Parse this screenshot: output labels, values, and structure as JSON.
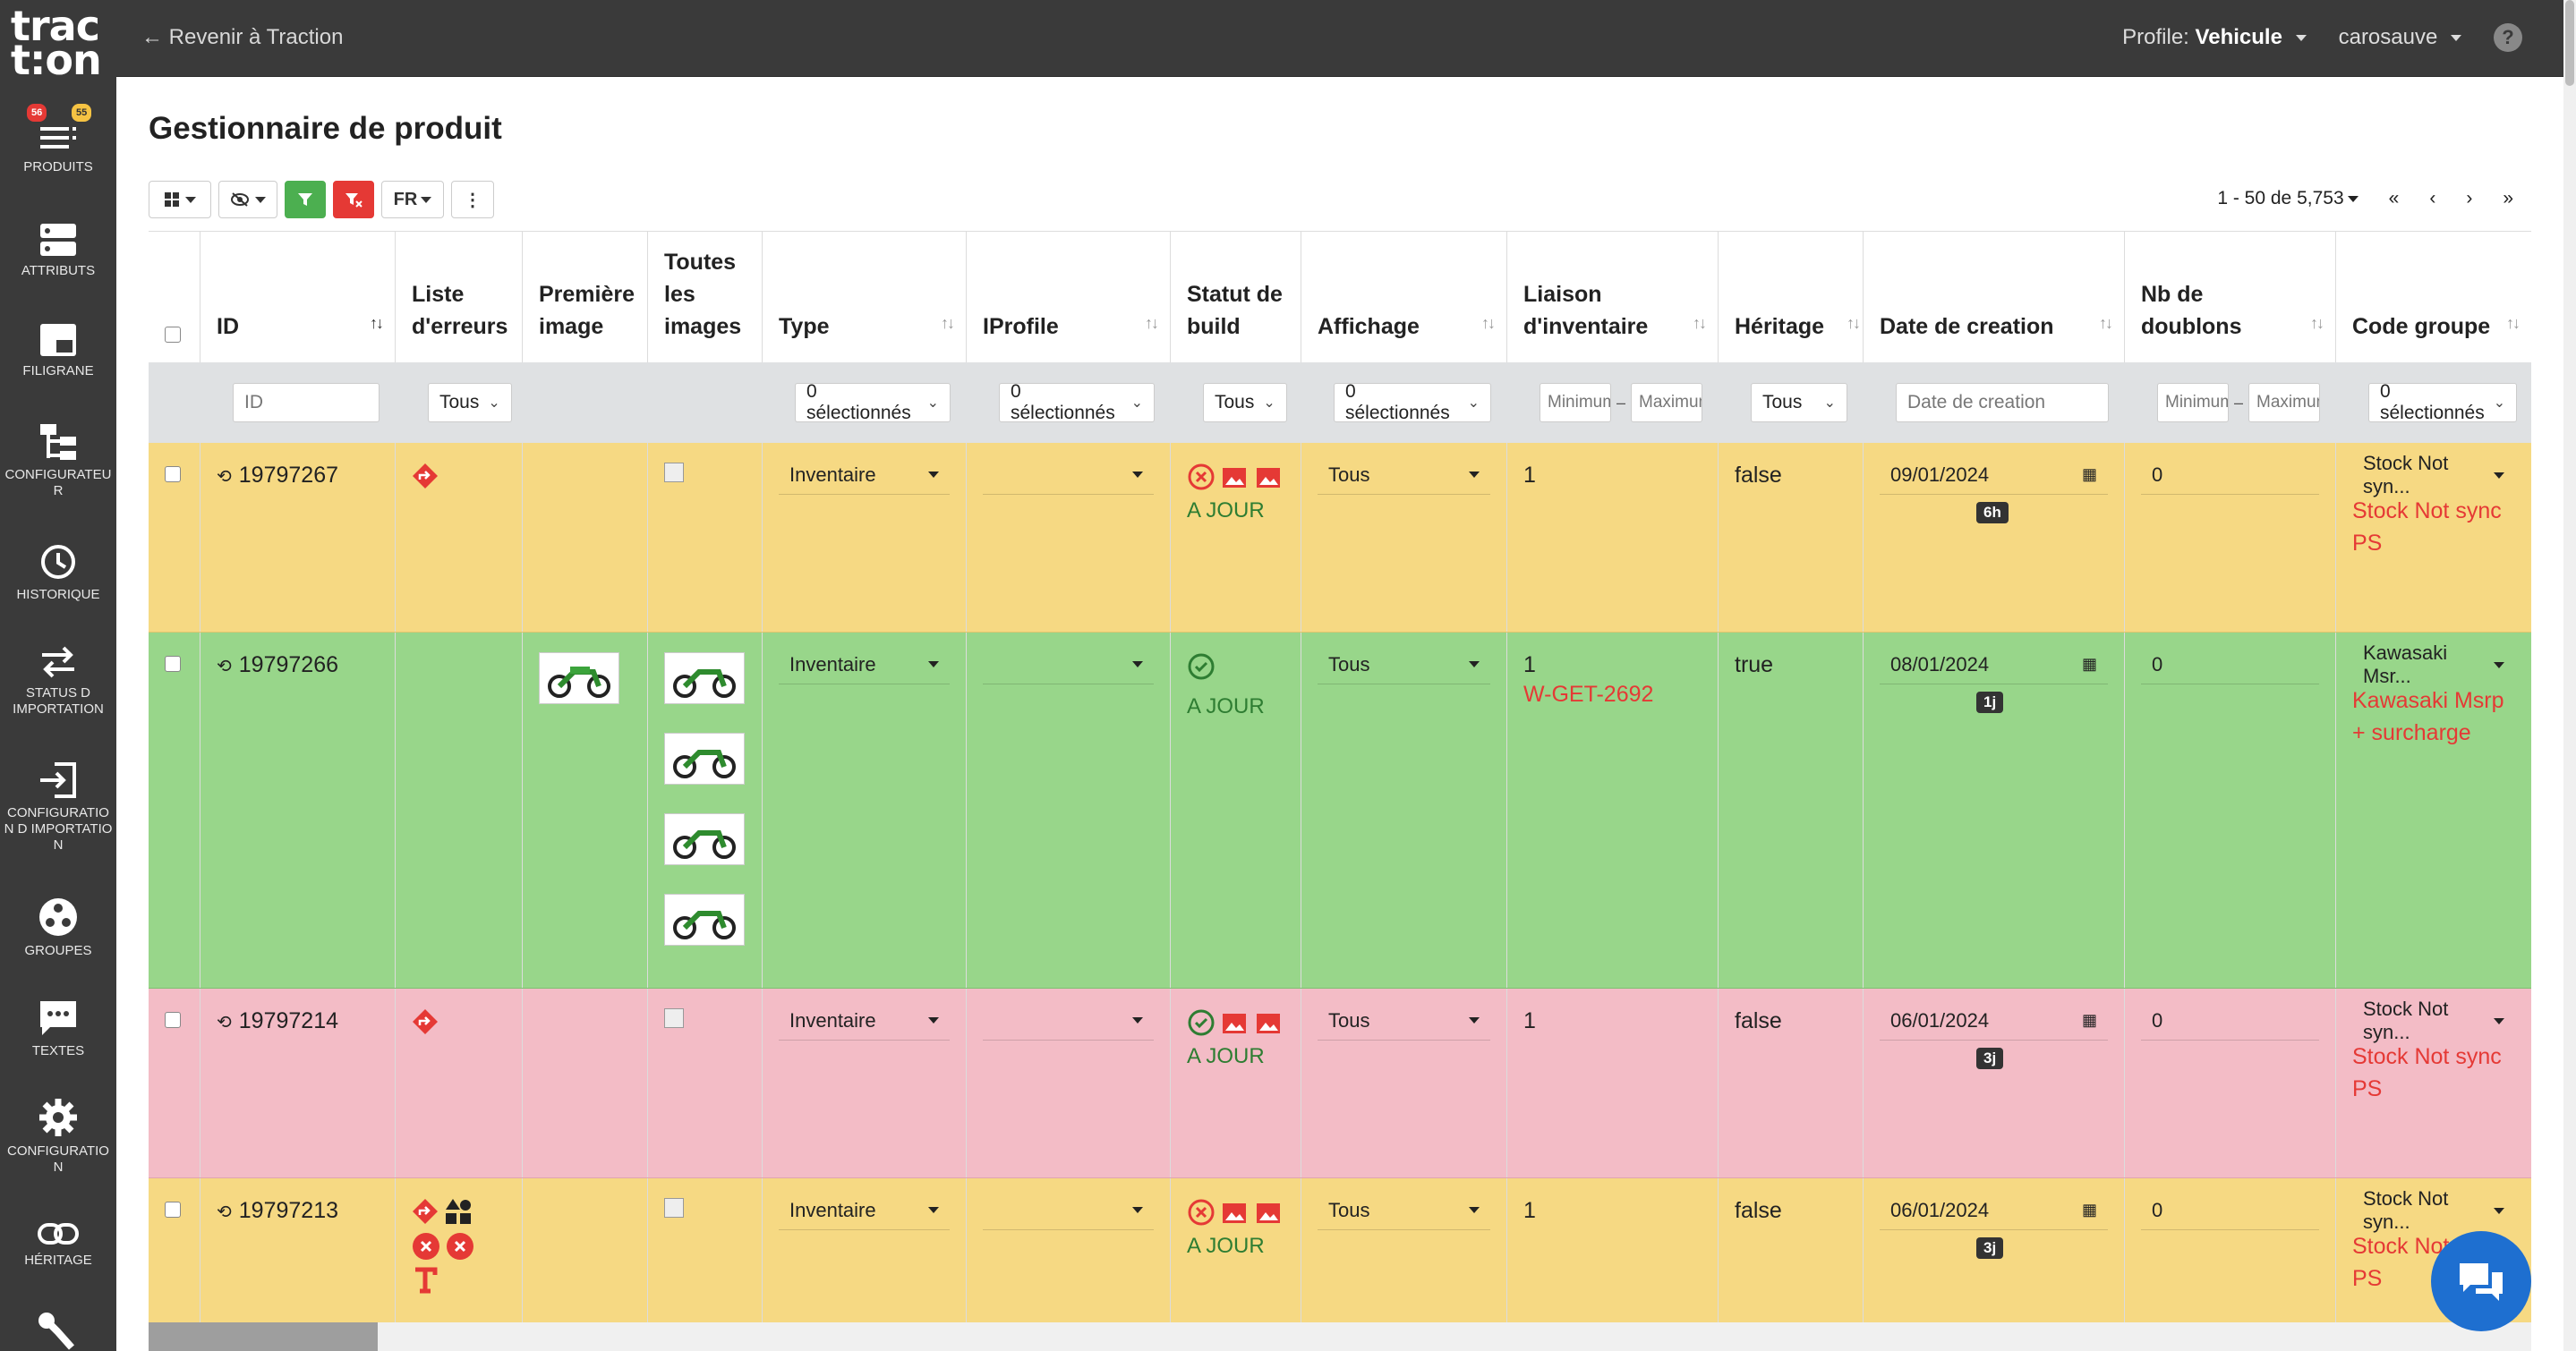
{
  "logo": {
    "line1": "trac",
    "line2": "t:on"
  },
  "sidebar": {
    "badges": {
      "red": "56",
      "yellow": "55"
    },
    "items": [
      {
        "label": "PRODUITS"
      },
      {
        "label": "ATTRIBUTS"
      },
      {
        "label": "FILIGRANE"
      },
      {
        "label": "CONFIGURATEUR"
      },
      {
        "label": "HISTORIQUE"
      },
      {
        "label": "STATUS D IMPORTATION"
      },
      {
        "label": "CONFIGURATION D IMPORTATION"
      },
      {
        "label": "GROUPES"
      },
      {
        "label": "TEXTES"
      },
      {
        "label": "CONFIGURATION"
      },
      {
        "label": "HÉRITAGE"
      }
    ]
  },
  "topbar": {
    "back": "Revenir à Traction",
    "profile_label": "Profile:",
    "profile_value": "Vehicule",
    "user": "carosauve",
    "help": "?"
  },
  "page": {
    "title": "Gestionnaire de produit"
  },
  "toolbar": {
    "lang": "FR",
    "more": "⋮"
  },
  "pager": {
    "range": "1 - 50 de 5,753",
    "first": "«",
    "prev": "‹",
    "next": "›",
    "last": "»"
  },
  "columns": [
    {
      "label": "ID"
    },
    {
      "label": "Liste d'erreurs"
    },
    {
      "label": "Première image"
    },
    {
      "label": "Toutes les images"
    },
    {
      "label": "Type"
    },
    {
      "label": "IProfile"
    },
    {
      "label": "Statut de build"
    },
    {
      "label": "Affichage"
    },
    {
      "label": "Liaison d'inventaire"
    },
    {
      "label": "Héritage"
    },
    {
      "label": "Date de creation"
    },
    {
      "label": "Nb de doublons"
    },
    {
      "label": "Code groupe"
    }
  ],
  "filters": {
    "id_placeholder": "ID",
    "errors": "Tous",
    "type": "0 sélectionnés",
    "iprofile": "0 sélectionnés",
    "build": "Tous",
    "affichage": "0 sélectionnés",
    "min": "Minimum",
    "max": "Maximum",
    "heritage": "Tous",
    "date_placeholder": "Date de creation",
    "dup_min": "Minimum",
    "dup_max": "Maximum",
    "group": "0 sélectionnés",
    "dash": "–"
  },
  "rows": [
    {
      "id": "19797267",
      "type": "Inventaire",
      "status": "A JOUR",
      "affichage": "Tous",
      "liaison": "1",
      "liaison_code": "",
      "heritage": "false",
      "date": "09/01/2024",
      "age": "6h",
      "dup": "0",
      "group": "Stock Not syn...",
      "group_full": "Stock Not sync PS"
    },
    {
      "id": "19797266",
      "type": "Inventaire",
      "status": "A JOUR",
      "affichage": "Tous",
      "liaison": "1",
      "liaison_code": "W-GET-2692",
      "heritage": "true",
      "date": "08/01/2024",
      "age": "1j",
      "dup": "0",
      "group": "Kawasaki Msr...",
      "group_full": "Kawasaki Msrp + surcharge"
    },
    {
      "id": "19797214",
      "type": "Inventaire",
      "status": "A JOUR",
      "affichage": "Tous",
      "liaison": "1",
      "liaison_code": "",
      "heritage": "false",
      "date": "06/01/2024",
      "age": "3j",
      "dup": "0",
      "group": "Stock Not syn...",
      "group_full": "Stock Not sync PS"
    },
    {
      "id": "19797213",
      "type": "Inventaire",
      "status": "A JOUR",
      "affichage": "Tous",
      "liaison": "1",
      "liaison_code": "",
      "heritage": "false",
      "date": "06/01/2024",
      "age": "3j",
      "dup": "0",
      "group": "Stock Not syn...",
      "group_full": "Stock Not sync PS"
    }
  ],
  "colors": {
    "yellow_row": "#f6d983",
    "green_row": "#98d68a",
    "pink_row": "#f3bcc6",
    "error_red": "#e53935",
    "ok_green": "#2e7d32",
    "sidebar": "#3a3a3a"
  }
}
